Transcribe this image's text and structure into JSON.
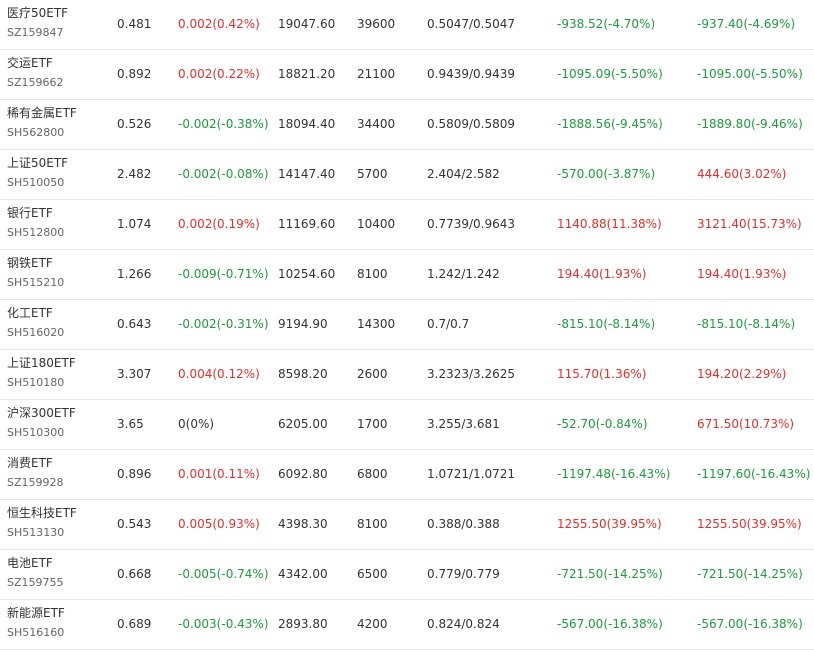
{
  "colors": {
    "up": "#e0302d",
    "down": "#1e9b3c",
    "flat": "#333333"
  },
  "rows": [
    {
      "name": "医疗50ETF",
      "code": "SZ159847",
      "price": "0.481",
      "change": "0.002(0.42%)",
      "change_dir": "up",
      "market_value": "19047.60",
      "shares": "39600",
      "cost": "0.5047/0.5047",
      "pnl": "-938.52(-4.70%)",
      "pnl_dir": "down",
      "total_pnl": "-937.40(-4.69%)",
      "total_dir": "down"
    },
    {
      "name": "交运ETF",
      "code": "SZ159662",
      "price": "0.892",
      "change": "0.002(0.22%)",
      "change_dir": "up",
      "market_value": "18821.20",
      "shares": "21100",
      "cost": "0.9439/0.9439",
      "pnl": "-1095.09(-5.50%)",
      "pnl_dir": "down",
      "total_pnl": "-1095.00(-5.50%)",
      "total_dir": "down"
    },
    {
      "name": "稀有金属ETF",
      "code": "SH562800",
      "price": "0.526",
      "change": "-0.002(-0.38%)",
      "change_dir": "down",
      "market_value": "18094.40",
      "shares": "34400",
      "cost": "0.5809/0.5809",
      "pnl": "-1888.56(-9.45%)",
      "pnl_dir": "down",
      "total_pnl": "-1889.80(-9.46%)",
      "total_dir": "down"
    },
    {
      "name": "上证50ETF",
      "code": "SH510050",
      "price": "2.482",
      "change": "-0.002(-0.08%)",
      "change_dir": "down",
      "market_value": "14147.40",
      "shares": "5700",
      "cost": "2.404/2.582",
      "pnl": "-570.00(-3.87%)",
      "pnl_dir": "down",
      "total_pnl": "444.60(3.02%)",
      "total_dir": "up"
    },
    {
      "name": "银行ETF",
      "code": "SH512800",
      "price": "1.074",
      "change": "0.002(0.19%)",
      "change_dir": "up",
      "market_value": "11169.60",
      "shares": "10400",
      "cost": "0.7739/0.9643",
      "pnl": "1140.88(11.38%)",
      "pnl_dir": "up",
      "total_pnl": "3121.40(15.73%)",
      "total_dir": "up"
    },
    {
      "name": "钢铁ETF",
      "code": "SH515210",
      "price": "1.266",
      "change": "-0.009(-0.71%)",
      "change_dir": "down",
      "market_value": "10254.60",
      "shares": "8100",
      "cost": "1.242/1.242",
      "pnl": "194.40(1.93%)",
      "pnl_dir": "up",
      "total_pnl": "194.40(1.93%)",
      "total_dir": "up"
    },
    {
      "name": "化工ETF",
      "code": "SH516020",
      "price": "0.643",
      "change": "-0.002(-0.31%)",
      "change_dir": "down",
      "market_value": "9194.90",
      "shares": "14300",
      "cost": "0.7/0.7",
      "pnl": "-815.10(-8.14%)",
      "pnl_dir": "down",
      "total_pnl": "-815.10(-8.14%)",
      "total_dir": "down"
    },
    {
      "name": "上证180ETF",
      "code": "SH510180",
      "price": "3.307",
      "change": "0.004(0.12%)",
      "change_dir": "up",
      "market_value": "8598.20",
      "shares": "2600",
      "cost": "3.2323/3.2625",
      "pnl": "115.70(1.36%)",
      "pnl_dir": "up",
      "total_pnl": "194.20(2.29%)",
      "total_dir": "up"
    },
    {
      "name": "沪深300ETF",
      "code": "SH510300",
      "price": "3.65",
      "change": "0(0%)",
      "change_dir": "flat",
      "market_value": "6205.00",
      "shares": "1700",
      "cost": "3.255/3.681",
      "pnl": "-52.70(-0.84%)",
      "pnl_dir": "down",
      "total_pnl": "671.50(10.73%)",
      "total_dir": "up"
    },
    {
      "name": "消费ETF",
      "code": "SZ159928",
      "price": "0.896",
      "change": "0.001(0.11%)",
      "change_dir": "up",
      "market_value": "6092.80",
      "shares": "6800",
      "cost": "1.0721/1.0721",
      "pnl": "-1197.48(-16.43%)",
      "pnl_dir": "down",
      "total_pnl": "-1197.60(-16.43%)",
      "total_dir": "down"
    },
    {
      "name": "恒生科技ETF",
      "code": "SH513130",
      "price": "0.543",
      "change": "0.005(0.93%)",
      "change_dir": "up",
      "market_value": "4398.30",
      "shares": "8100",
      "cost": "0.388/0.388",
      "pnl": "1255.50(39.95%)",
      "pnl_dir": "up",
      "total_pnl": "1255.50(39.95%)",
      "total_dir": "up"
    },
    {
      "name": "电池ETF",
      "code": "SZ159755",
      "price": "0.668",
      "change": "-0.005(-0.74%)",
      "change_dir": "down",
      "market_value": "4342.00",
      "shares": "6500",
      "cost": "0.779/0.779",
      "pnl": "-721.50(-14.25%)",
      "pnl_dir": "down",
      "total_pnl": "-721.50(-14.25%)",
      "total_dir": "down"
    },
    {
      "name": "新能源ETF",
      "code": "SH516160",
      "price": "0.689",
      "change": "-0.003(-0.43%)",
      "change_dir": "down",
      "market_value": "2893.80",
      "shares": "4200",
      "cost": "0.824/0.824",
      "pnl": "-567.00(-16.38%)",
      "pnl_dir": "down",
      "total_pnl": "-567.00(-16.38%)",
      "total_dir": "down"
    }
  ]
}
